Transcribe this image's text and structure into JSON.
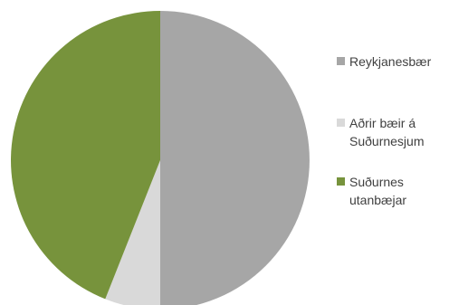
{
  "chart_data": {
    "type": "pie",
    "title": "",
    "categories": [
      "Reykjanesbær",
      "Aðrir bæir á\nSuðurnesjum",
      "Suðurnes\nutanbæjar"
    ],
    "values": [
      50,
      6,
      44
    ],
    "colors": [
      "#a6a6a6",
      "#d9d9d9",
      "#77933c"
    ],
    "start_angle_deg": 0,
    "direction": "clockwise",
    "legend": "right"
  }
}
